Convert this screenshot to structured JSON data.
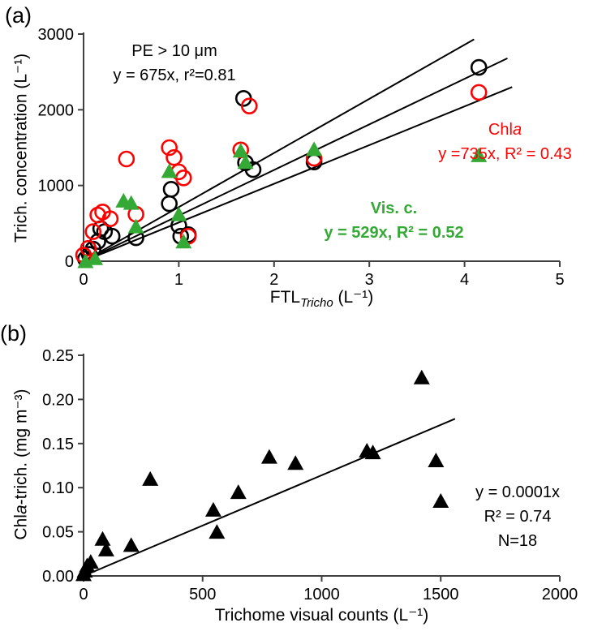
{
  "chart_data": [
    {
      "type": "scatter",
      "panel_label": "(a)",
      "ylabel": "Trich. concentration (L⁻¹)",
      "xlabel_main": "FTL",
      "xlabel_sub": "Tricho",
      "xlabel_unit": " (L⁻¹)",
      "xlim": [
        0,
        5
      ],
      "ylim": [
        0,
        3000
      ],
      "xticks": [
        0,
        1,
        2,
        3,
        4,
        5
      ],
      "xtick_labels": [
        "0",
        "1",
        "2",
        "3",
        "4",
        "5"
      ],
      "yticks": [
        0,
        1000,
        2000,
        3000
      ],
      "ytick_labels": [
        "0",
        "1000",
        "2000",
        "3000"
      ],
      "grid": false,
      "legend": "none",
      "series": [
        {
          "name": "PE > 10 μm",
          "marker": "circle",
          "color": "#000000",
          "points": [
            [
              0.02,
              30
            ],
            [
              0.06,
              90
            ],
            [
              0.1,
              160
            ],
            [
              0.15,
              260
            ],
            [
              0.18,
              430
            ],
            [
              0.22,
              390
            ],
            [
              0.3,
              330
            ],
            [
              0.55,
              310
            ],
            [
              0.9,
              760
            ],
            [
              0.92,
              950
            ],
            [
              1.0,
              470
            ],
            [
              1.02,
              330
            ],
            [
              1.1,
              350
            ],
            [
              1.68,
              2150
            ],
            [
              1.7,
              1300
            ],
            [
              1.78,
              1210
            ],
            [
              2.42,
              1310
            ],
            [
              4.15,
              2560
            ]
          ]
        },
        {
          "name": "Chl a",
          "marker": "circle",
          "color": "#ff0000",
          "points": [
            [
              0.0,
              80
            ],
            [
              0.05,
              170
            ],
            [
              0.1,
              390
            ],
            [
              0.15,
              610
            ],
            [
              0.2,
              650
            ],
            [
              0.28,
              560
            ],
            [
              0.45,
              1350
            ],
            [
              0.55,
              620
            ],
            [
              0.9,
              1500
            ],
            [
              0.95,
              1370
            ],
            [
              1.0,
              1180
            ],
            [
              1.05,
              1100
            ],
            [
              1.1,
              330
            ],
            [
              1.65,
              1470
            ],
            [
              1.74,
              2050
            ],
            [
              2.42,
              1360
            ],
            [
              4.15,
              2230
            ]
          ]
        },
        {
          "name": "Vis. c.",
          "marker": "triangle",
          "color": "#35a935",
          "points": [
            [
              0.02,
              0
            ],
            [
              0.12,
              40
            ],
            [
              0.42,
              800
            ],
            [
              0.5,
              770
            ],
            [
              0.55,
              460
            ],
            [
              0.9,
              1190
            ],
            [
              1.0,
              620
            ],
            [
              1.05,
              260
            ],
            [
              1.65,
              1460
            ],
            [
              1.7,
              1310
            ],
            [
              2.42,
              1480
            ],
            [
              4.15,
              1400
            ]
          ]
        }
      ],
      "fit_lines": [
        {
          "x1": 0,
          "y1": 0,
          "x2": 4.1,
          "y2": 2930
        },
        {
          "x1": 0,
          "y1": 0,
          "x2": 4.45,
          "y2": 2680
        },
        {
          "x1": 0,
          "y1": 0,
          "x2": 4.5,
          "y2": 2300
        }
      ],
      "annotations": {
        "pe": {
          "line1": "PE > 10 μm",
          "line2": "y = 675x, r²=0.81"
        },
        "chla": {
          "line1_main": "Chl",
          "line1_italic": "a",
          "line2": "y =735x, R² = 0.43"
        },
        "vis": {
          "line1": "Vis. c.",
          "line2": "y = 529x, R² = 0.52"
        }
      }
    },
    {
      "type": "scatter",
      "panel_label": "(b)",
      "ylabel_main": "Chl",
      "ylabel_italic": "a",
      "ylabel_rest": "-trich. (mg m⁻³)",
      "xlabel": "Trichome visual counts (L⁻¹)",
      "xlim": [
        0,
        2000
      ],
      "ylim": [
        0,
        0.25
      ],
      "xticks": [
        0,
        500,
        1000,
        1500,
        2000
      ],
      "xtick_labels": [
        "0",
        "500",
        "1000",
        "1500",
        "2000"
      ],
      "yticks": [
        0,
        0.05,
        0.1,
        0.15,
        0.2,
        0.25
      ],
      "ytick_labels": [
        "0.00",
        "0.05",
        "0.10",
        "0.15",
        "0.20",
        "0.25"
      ],
      "grid": false,
      "legend": "none",
      "series": [
        {
          "name": "Chla-trich.",
          "marker": "triangle",
          "color": "#000000",
          "points": [
            [
              0,
              0.002
            ],
            [
              5,
              0.006
            ],
            [
              15,
              0.012
            ],
            [
              30,
              0.016
            ],
            [
              80,
              0.042
            ],
            [
              95,
              0.03
            ],
            [
              200,
              0.035
            ],
            [
              280,
              0.11
            ],
            [
              545,
              0.075
            ],
            [
              560,
              0.05
            ],
            [
              650,
              0.095
            ],
            [
              780,
              0.135
            ],
            [
              890,
              0.128
            ],
            [
              1190,
              0.142
            ],
            [
              1215,
              0.14
            ],
            [
              1420,
              0.225
            ],
            [
              1480,
              0.131
            ],
            [
              1500,
              0.085
            ]
          ]
        }
      ],
      "fit_lines": [
        {
          "x1": 0,
          "y1": 0,
          "x2": 1560,
          "y2": 0.178
        }
      ],
      "annotations": {
        "stats": {
          "line1": "y = 0.0001x",
          "line2": "R² = 0.74",
          "line3": "N=18"
        }
      }
    }
  ]
}
